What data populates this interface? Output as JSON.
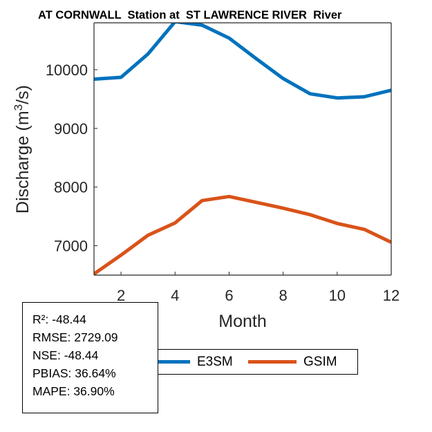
{
  "chart_data": {
    "type": "line",
    "title": "AT CORNWALL  Station at  ST LAWRENCE RIVER  River",
    "xlabel": "Month",
    "ylabel": "Discharge (m",
    "ylabel_sup": "3",
    "ylabel_end": "/s)",
    "xlim": [
      1,
      12
    ],
    "ylim": [
      6500,
      10800
    ],
    "xticks": [
      2,
      4,
      6,
      8,
      10,
      12
    ],
    "yticks": [
      7000,
      8000,
      9000,
      10000
    ],
    "grid": false,
    "legend_location": "bottom",
    "x": [
      1,
      2,
      3,
      4,
      5,
      6,
      7,
      8,
      9,
      10,
      11,
      12
    ],
    "series": [
      {
        "name": "E3SM",
        "color": "#0072BD",
        "values": [
          9840,
          9870,
          10270,
          10820,
          10760,
          10540,
          10190,
          9850,
          9590,
          9520,
          9540,
          9650
        ]
      },
      {
        "name": "GSIM",
        "color": "#D95319",
        "values": [
          6520,
          6840,
          7180,
          7390,
          7770,
          7840,
          7740,
          7640,
          7530,
          7380,
          7280,
          7060
        ]
      }
    ]
  },
  "stats": [
    "R²: -48.44",
    "RMSE: 2729.09",
    "NSE: -48.44",
    "PBIAS: 36.64%",
    "MAPE: 36.90%"
  ]
}
